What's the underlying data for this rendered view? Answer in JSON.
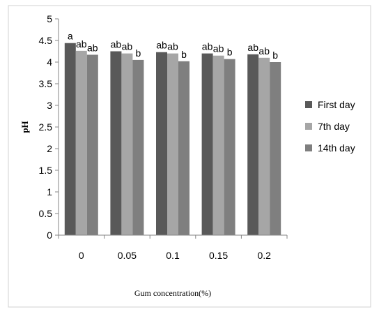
{
  "chart_data": {
    "type": "bar",
    "title": "",
    "xlabel": "Gum concentration(%)",
    "ylabel": "pH",
    "categories": [
      "0",
      "0.05",
      "0.1",
      "0.15",
      "0.2"
    ],
    "ylim": [
      0,
      5
    ],
    "yticks": [
      "0",
      "0.5",
      "1",
      "1.5",
      "2",
      "2.5",
      "3",
      "3.5",
      "4",
      "4.5",
      "5"
    ],
    "grid": false,
    "legend_position": "right",
    "series": [
      {
        "name": "First day",
        "color": "#595959",
        "values": [
          4.44,
          4.25,
          4.23,
          4.2,
          4.18
        ],
        "labels": [
          "a",
          "ab",
          "ab",
          "ab",
          "ab"
        ]
      },
      {
        "name": "7th day",
        "color": "#a6a6a6",
        "values": [
          4.26,
          4.2,
          4.2,
          4.15,
          4.1
        ],
        "labels": [
          "ab",
          "ab",
          "ab",
          "ab",
          "ab"
        ]
      },
      {
        "name": "14th day",
        "color": "#7f7f7f",
        "values": [
          4.17,
          4.05,
          4.02,
          4.07,
          4.0
        ],
        "labels": [
          "ab",
          "b",
          "b",
          "b",
          "b"
        ]
      }
    ]
  }
}
